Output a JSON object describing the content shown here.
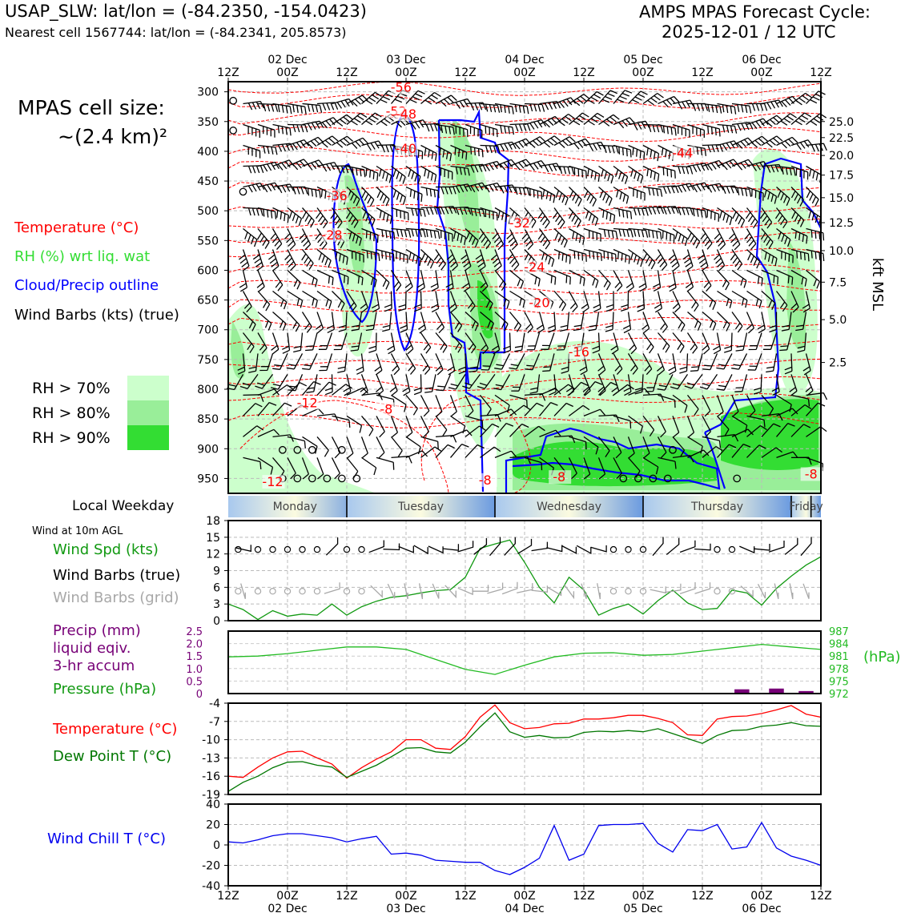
{
  "header": {
    "station": "USAP_SLW: lat/lon = (-84.2350, -154.0423)",
    "nearest": "Nearest cell 1567744: lat/lon = (-84.2341, 205.8573)",
    "cycle_title": "AMPS MPAS Forecast Cycle:",
    "cycle_time": "2025-12-01 / 12 UTC"
  },
  "cell_size": {
    "line1": "MPAS cell size:",
    "line2": "~(2.4 km)²"
  },
  "legend": {
    "temperature": {
      "label": "Temperature (°C)",
      "color": "#ff0000"
    },
    "rh": {
      "label": "RH (%) wrt liq. wat",
      "color": "#33dd33"
    },
    "cloud": {
      "label": "Cloud/Precip outline",
      "color": "#0000ff"
    },
    "wind": {
      "label": "Wind Barbs (kts) (true)",
      "color": "#000000"
    },
    "rh_levels": [
      {
        "label": "RH > 70%",
        "color": "#ccffcc"
      },
      {
        "label": "RH > 80%",
        "color": "#99ee99"
      },
      {
        "label": "RH > 90%",
        "color": "#33dd33"
      }
    ]
  },
  "time_axis": {
    "top": [
      "12Z",
      "02 Dec\n00Z",
      "12Z",
      "03 Dec\n00Z",
      "12Z",
      "04 Dec\n00Z",
      "12Z",
      "05 Dec\n00Z",
      "12Z",
      "06 Dec\n00Z",
      "12Z"
    ],
    "hours": [
      "12Z",
      "00Z",
      "12Z",
      "00Z",
      "12Z",
      "00Z",
      "12Z",
      "00Z",
      "12Z",
      "00Z",
      "12Z"
    ],
    "dates": [
      "",
      "02 Dec",
      "",
      "03 Dec",
      "",
      "04 Dec",
      "",
      "05 Dec",
      "",
      "06 Dec",
      ""
    ]
  },
  "weekday": {
    "label": "Local Weekday",
    "days": [
      "Monday",
      "Tuesday",
      "Wednesday",
      "Thursday",
      "Friday"
    ]
  },
  "chart_data": [
    {
      "type": "heatmap",
      "panel": "upper-air cross-section",
      "yticks_hpa": [
        300,
        350,
        400,
        450,
        500,
        550,
        600,
        650,
        700,
        750,
        800,
        850,
        900,
        950
      ],
      "right_ticks_kft": [
        25.0,
        22.5,
        20.0,
        17.5,
        15.0,
        12.5,
        10.0,
        7.5,
        5.0,
        2.5
      ],
      "right_tick_labels": [
        "25.0",
        "22.5",
        "20.0",
        "17.5",
        "15.0",
        "12.5",
        "10.0",
        "7.5",
        "5.0",
        "2.5"
      ],
      "right_tick_hpa": [
        350,
        377,
        407,
        440,
        478,
        520,
        567,
        620,
        683,
        755
      ],
      "right_axis_label": "kft MSL",
      "temp_labels": [
        {
          "t": 35,
          "p": 300,
          "text": "-56"
        },
        {
          "t": 34,
          "p": 340,
          "text": "-52"
        },
        {
          "t": 36,
          "p": 345,
          "text": "-48"
        },
        {
          "t": 36,
          "p": 403,
          "text": "-40"
        },
        {
          "t": 92,
          "p": 410,
          "text": "-44"
        },
        {
          "t": 22,
          "p": 482,
          "text": "-36"
        },
        {
          "t": 59,
          "p": 528,
          "text": "-32"
        },
        {
          "t": 21,
          "p": 548,
          "text": "-28"
        },
        {
          "t": 62,
          "p": 602,
          "text": "-24"
        },
        {
          "t": 63,
          "p": 662,
          "text": "-20"
        },
        {
          "t": 71,
          "p": 745,
          "text": "-16"
        },
        {
          "t": 16,
          "p": 830,
          "text": "-12"
        },
        {
          "t": 32,
          "p": 841,
          "text": "-8"
        },
        {
          "t": 52,
          "p": 960,
          "text": "-8"
        },
        {
          "t": 67,
          "p": 955,
          "text": "-8"
        },
        {
          "t": 118,
          "p": 950,
          "text": "-8"
        },
        {
          "t": 9,
          "p": 963,
          "text": "-12"
        }
      ],
      "calm_points": [
        {
          "t": 1,
          "p": 315
        },
        {
          "t": 1,
          "p": 365
        },
        {
          "t": 3,
          "p": 468
        },
        {
          "t": 11,
          "p": 902
        },
        {
          "t": 14,
          "p": 902
        },
        {
          "t": 17,
          "p": 902
        },
        {
          "t": 23,
          "p": 902
        },
        {
          "t": 11,
          "p": 950
        },
        {
          "t": 14,
          "p": 950
        },
        {
          "t": 17,
          "p": 950
        },
        {
          "t": 20,
          "p": 950
        },
        {
          "t": 23,
          "p": 950
        },
        {
          "t": 26,
          "p": 950
        },
        {
          "t": 90,
          "p": 902
        },
        {
          "t": 80,
          "p": 950
        },
        {
          "t": 83,
          "p": 950
        },
        {
          "t": 86,
          "p": 950
        },
        {
          "t": 89,
          "p": 950
        },
        {
          "t": 103,
          "p": 950
        }
      ]
    },
    {
      "type": "line",
      "panel": "wind",
      "subtitle": "Wind at 10m AGL",
      "labels": [
        "Wind Spd (kts)",
        "Wind Barbs (true)",
        "Wind Barbs (grid)"
      ],
      "ylim": [
        0,
        18
      ],
      "yticks": [
        0,
        3,
        6,
        9,
        12,
        15,
        18
      ],
      "x_hours": [
        0,
        3,
        6,
        9,
        12,
        15,
        18,
        21,
        24,
        27,
        30,
        33,
        36,
        39,
        42,
        45,
        48,
        51,
        54,
        57,
        60,
        63,
        66,
        69,
        72,
        75,
        78,
        81,
        84,
        87,
        90,
        93,
        96,
        99,
        102,
        105,
        108,
        111,
        114,
        117,
        120
      ],
      "wind_speed": [
        3.0,
        2.0,
        0.2,
        1.8,
        0.8,
        1.2,
        1.0,
        3.0,
        1.0,
        2.5,
        3.5,
        4.2,
        4.5,
        5.0,
        5.4,
        5.6,
        7.8,
        13.0,
        13.8,
        14.5,
        10.5,
        6.0,
        3.2,
        7.8,
        5.5,
        1.0,
        2.2,
        3.0,
        1.2,
        3.6,
        5.5,
        3.2,
        2.0,
        2.2,
        5.5,
        5.0,
        2.8,
        5.8,
        8.0,
        10.0,
        11.5
      ],
      "calm_hours_true": [
        2,
        6,
        9,
        12,
        15,
        18,
        24,
        27,
        78,
        81,
        84,
        99,
        102
      ],
      "calm_hours_grid": [
        2,
        6,
        9,
        12,
        15,
        18,
        24,
        27,
        78,
        81,
        84,
        99,
        102
      ]
    },
    {
      "type": "line",
      "panel": "precip-pressure",
      "labels": [
        "Precip (mm)",
        "liquid eqiv.",
        "3-hr accum",
        "Pressure (hPa)"
      ],
      "precip_ylim": [
        0,
        2.5
      ],
      "precip_yticks": [
        "0",
        "0.5",
        "1.0",
        "1.5",
        "2.0",
        "2.5"
      ],
      "pressure_ylim": [
        972,
        987
      ],
      "pressure_yticks": [
        "972",
        "975",
        "978",
        "981",
        "984",
        "987"
      ],
      "pressure_axis_label": "(hPa)",
      "x_hours": [
        0,
        6,
        12,
        18,
        24,
        30,
        36,
        42,
        48,
        54,
        60,
        66,
        72,
        78,
        84,
        90,
        96,
        102,
        108,
        114,
        120
      ],
      "pressure": [
        980.8,
        981.0,
        981.6,
        982.4,
        983.2,
        983.2,
        982.6,
        980.2,
        977.8,
        976.6,
        978.8,
        980.8,
        981.7,
        981.8,
        981.2,
        981.4,
        982.2,
        983.0,
        983.8,
        983.2,
        982.6
      ],
      "precip_bars": [
        {
          "hour": 104,
          "value": 0.17
        },
        {
          "hour": 111,
          "value": 0.2
        },
        {
          "hour": 117,
          "value": 0.1
        }
      ]
    },
    {
      "type": "line",
      "panel": "temperature",
      "labels": [
        "Temperature (°C)",
        "Dew Point T (°C)"
      ],
      "ylim": [
        -19,
        -4
      ],
      "yticks": [
        "-19",
        "-16",
        "-13",
        "-10",
        "-7",
        "-4"
      ],
      "x_hours": [
        0,
        3,
        6,
        9,
        12,
        15,
        18,
        21,
        24,
        27,
        30,
        33,
        36,
        39,
        42,
        45,
        48,
        51,
        54,
        57,
        60,
        63,
        66,
        69,
        72,
        75,
        78,
        81,
        84,
        87,
        90,
        93,
        96,
        99,
        102,
        105,
        108,
        111,
        114,
        117,
        120
      ],
      "temperature": [
        -16.0,
        -16.2,
        -14.5,
        -13.0,
        -12.0,
        -11.9,
        -13.0,
        -14.0,
        -16.3,
        -14.6,
        -13.2,
        -12.0,
        -10.0,
        -10.0,
        -11.4,
        -11.6,
        -9.5,
        -6.3,
        -4.3,
        -7.2,
        -8.2,
        -8.0,
        -7.4,
        -7.3,
        -6.6,
        -6.6,
        -6.4,
        -6.0,
        -6.0,
        -6.5,
        -7.2,
        -9.2,
        -9.3,
        -6.6,
        -6.2,
        -6.1,
        -5.7,
        -5.1,
        -4.4,
        -5.8,
        -6.3
      ],
      "dewpoint": [
        -18.5,
        -17.0,
        -16.0,
        -14.6,
        -13.7,
        -13.6,
        -14.2,
        -14.5,
        -16.2,
        -15.2,
        -14.2,
        -12.8,
        -11.4,
        -11.3,
        -12.0,
        -12.2,
        -10.4,
        -7.9,
        -5.6,
        -8.7,
        -9.6,
        -9.3,
        -9.7,
        -9.6,
        -8.8,
        -8.6,
        -8.7,
        -8.5,
        -8.7,
        -8.2,
        -9.0,
        -9.8,
        -10.6,
        -9.3,
        -8.5,
        -8.4,
        -7.8,
        -7.6,
        -7.2,
        -7.7,
        -7.8
      ]
    },
    {
      "type": "line",
      "panel": "wind-chill",
      "labels": [
        "Wind Chill T (°C)"
      ],
      "ylim": [
        -40,
        40
      ],
      "yticks": [
        "-40",
        "-20",
        "0",
        "20",
        "40"
      ],
      "x_hours": [
        0,
        3,
        6,
        9,
        12,
        15,
        18,
        21,
        24,
        27,
        30,
        33,
        36,
        39,
        42,
        45,
        48,
        51,
        54,
        57,
        60,
        63,
        66,
        69,
        72,
        75,
        78,
        81,
        84,
        87,
        90,
        93,
        96,
        99,
        102,
        105,
        108,
        111,
        114,
        117,
        120
      ],
      "wind_chill": [
        3.0,
        2.0,
        5.0,
        9.0,
        11.0,
        11.0,
        9.0,
        7.0,
        3.0,
        6.0,
        8.5,
        -9.0,
        -8.0,
        -10.0,
        -15.0,
        -16.0,
        -17.0,
        -17.0,
        -25.0,
        -29.0,
        -22.0,
        -13.0,
        19.0,
        -15.0,
        -9.0,
        19.0,
        20.0,
        20.0,
        21.0,
        1.5,
        -7.0,
        15.0,
        14.0,
        20.0,
        -4.0,
        -2.0,
        22.0,
        -3.0,
        -11.0,
        -15.0,
        -20.0
      ]
    }
  ],
  "colors": {
    "temperature": "#ff0000",
    "dewpoint": "#007700",
    "wind_speed": "#119911",
    "pressure": "#22bb22",
    "precip": "#770077",
    "wind_chill": "#0000ee",
    "cloud_outline": "#0000ff",
    "barb_grid": "#a8a8a8",
    "pressure_tick_text": "#22bb22",
    "precip_tick_text": "#770077"
  }
}
